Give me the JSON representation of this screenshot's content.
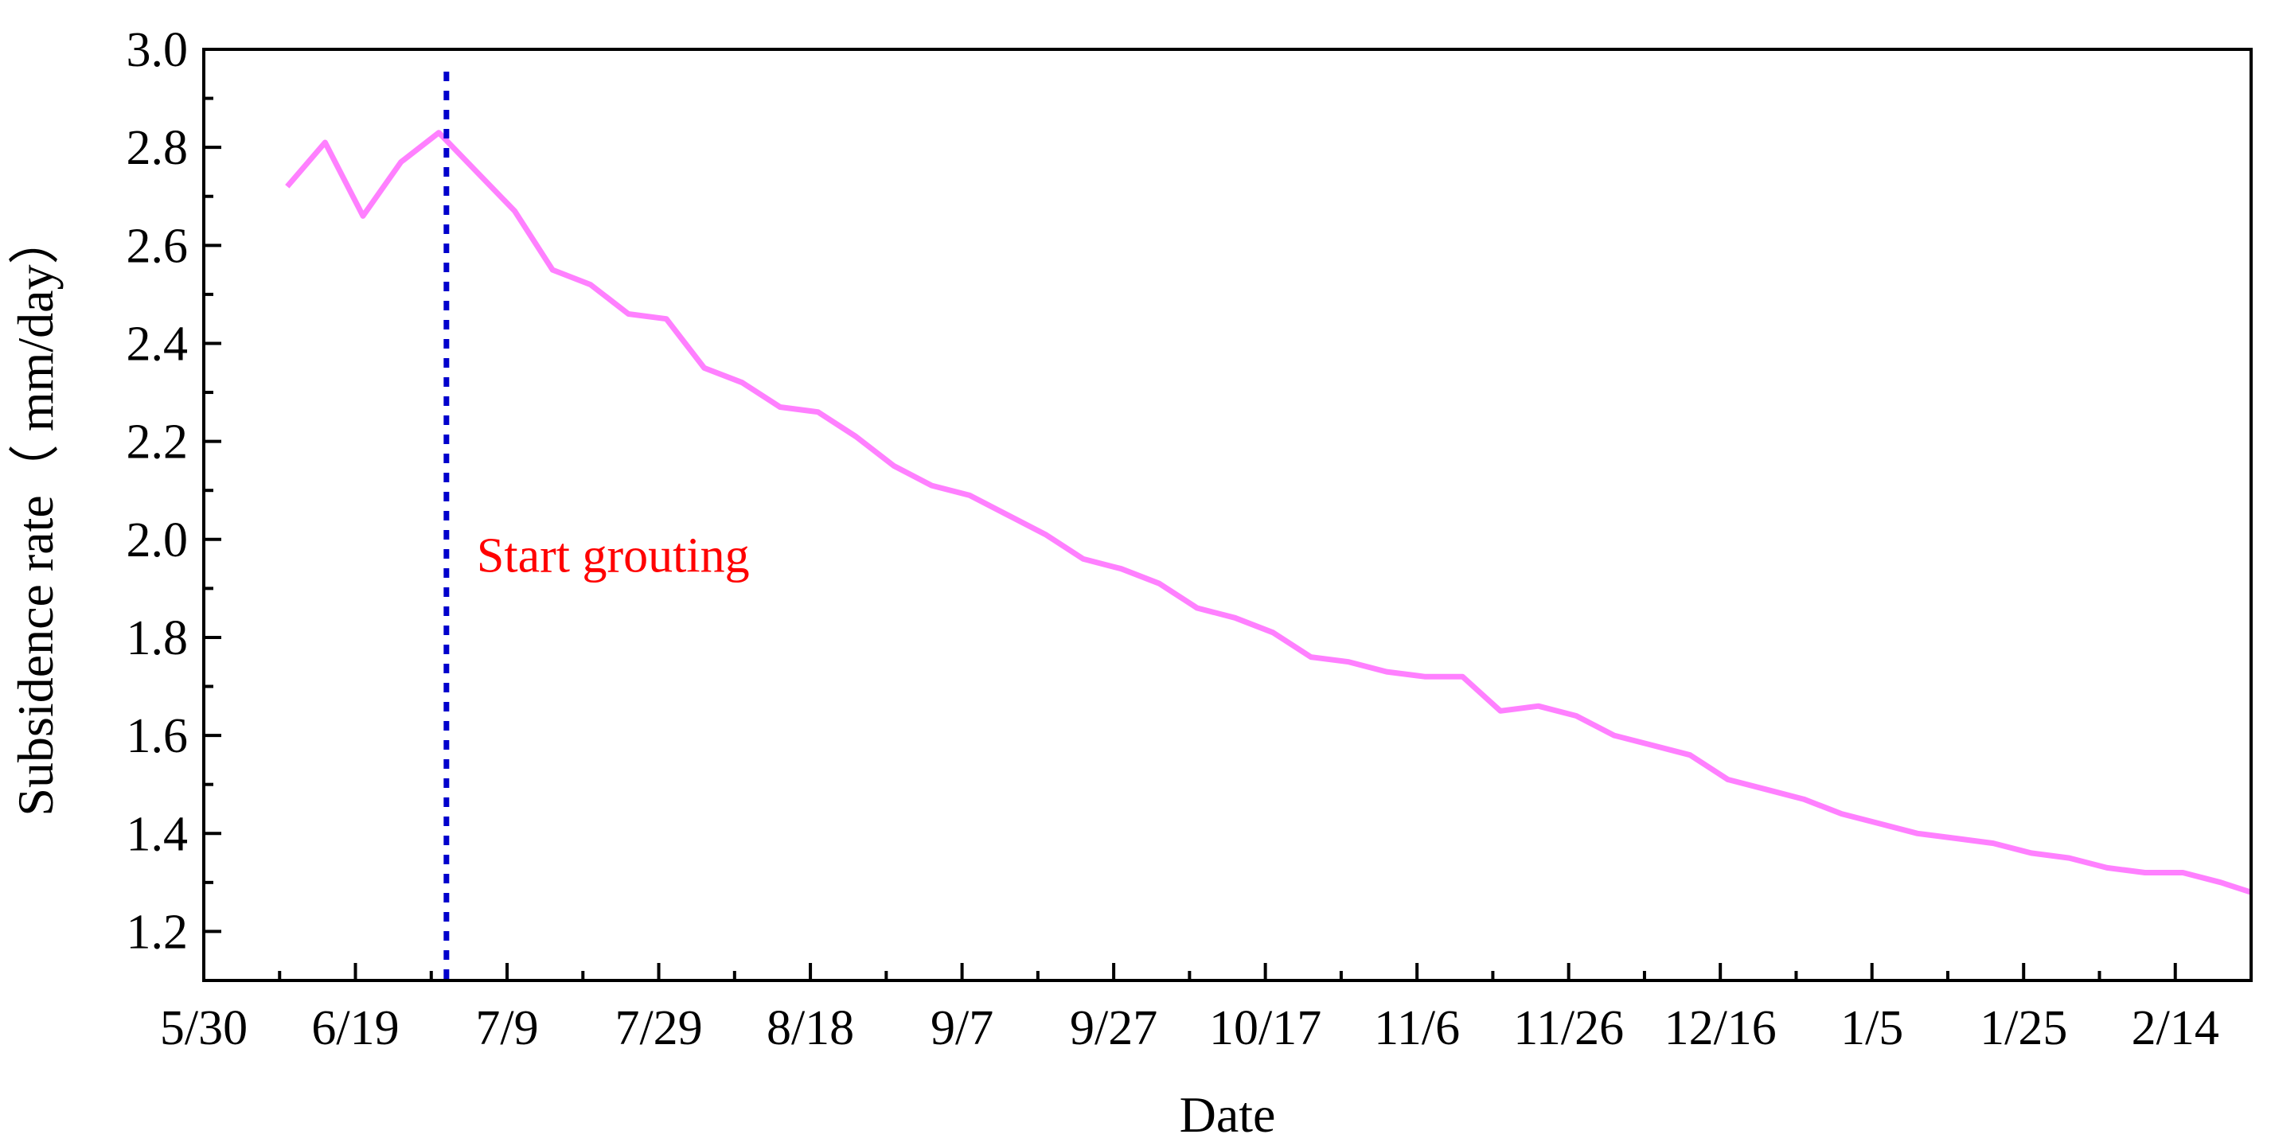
{
  "chart_data": {
    "type": "line",
    "xlabel": "Date",
    "ylabel": "Subsidence rate（ mm/day）",
    "ylim": [
      1.1,
      3.0
    ],
    "y_ticks": [
      1.2,
      1.4,
      1.6,
      1.8,
      2.0,
      2.2,
      2.4,
      2.6,
      2.8,
      3.0
    ],
    "x_range_days": [
      0,
      270
    ],
    "x_ticks": [
      {
        "day": 0,
        "label": "5/30"
      },
      {
        "day": 20,
        "label": "6/19"
      },
      {
        "day": 40,
        "label": "7/9"
      },
      {
        "day": 60,
        "label": "7/29"
      },
      {
        "day": 80,
        "label": "8/18"
      },
      {
        "day": 100,
        "label": "9/7"
      },
      {
        "day": 120,
        "label": "9/27"
      },
      {
        "day": 140,
        "label": "10/17"
      },
      {
        "day": 160,
        "label": "11/6"
      },
      {
        "day": 180,
        "label": "11/26"
      },
      {
        "day": 200,
        "label": "12/16"
      },
      {
        "day": 220,
        "label": "1/5"
      },
      {
        "day": 240,
        "label": "1/25"
      },
      {
        "day": 260,
        "label": "2/14"
      }
    ],
    "grid": false,
    "series": [
      {
        "color": "#ff80ff",
        "x": [
          11,
          16,
          21,
          26,
          31,
          36,
          41,
          46,
          51,
          56,
          61,
          66,
          71,
          76,
          81,
          86,
          91,
          96,
          101,
          106,
          111,
          116,
          121,
          126,
          131,
          136,
          141,
          146,
          151,
          156,
          161,
          166,
          171,
          176,
          181,
          186,
          191,
          196,
          201,
          206,
          211,
          216,
          221,
          226,
          231,
          236,
          241,
          246,
          251,
          256,
          261,
          266,
          270
        ],
        "y": [
          2.72,
          2.81,
          2.66,
          2.77,
          2.83,
          2.75,
          2.67,
          2.55,
          2.52,
          2.46,
          2.45,
          2.35,
          2.32,
          2.27,
          2.26,
          2.21,
          2.15,
          2.11,
          2.09,
          2.05,
          2.01,
          1.96,
          1.94,
          1.91,
          1.86,
          1.84,
          1.81,
          1.76,
          1.75,
          1.73,
          1.72,
          1.72,
          1.65,
          1.66,
          1.64,
          1.6,
          1.58,
          1.56,
          1.51,
          1.49,
          1.47,
          1.44,
          1.42,
          1.4,
          1.39,
          1.38,
          1.36,
          1.35,
          1.33,
          1.32,
          1.32,
          1.3,
          1.28
        ]
      }
    ],
    "annotations": [
      {
        "type": "vline",
        "day": 32,
        "color": "#0000cc",
        "style": "dotted"
      },
      {
        "type": "text",
        "text": "Start grouting",
        "day": 36,
        "y": 1.97,
        "color": "#ff0000"
      }
    ]
  }
}
